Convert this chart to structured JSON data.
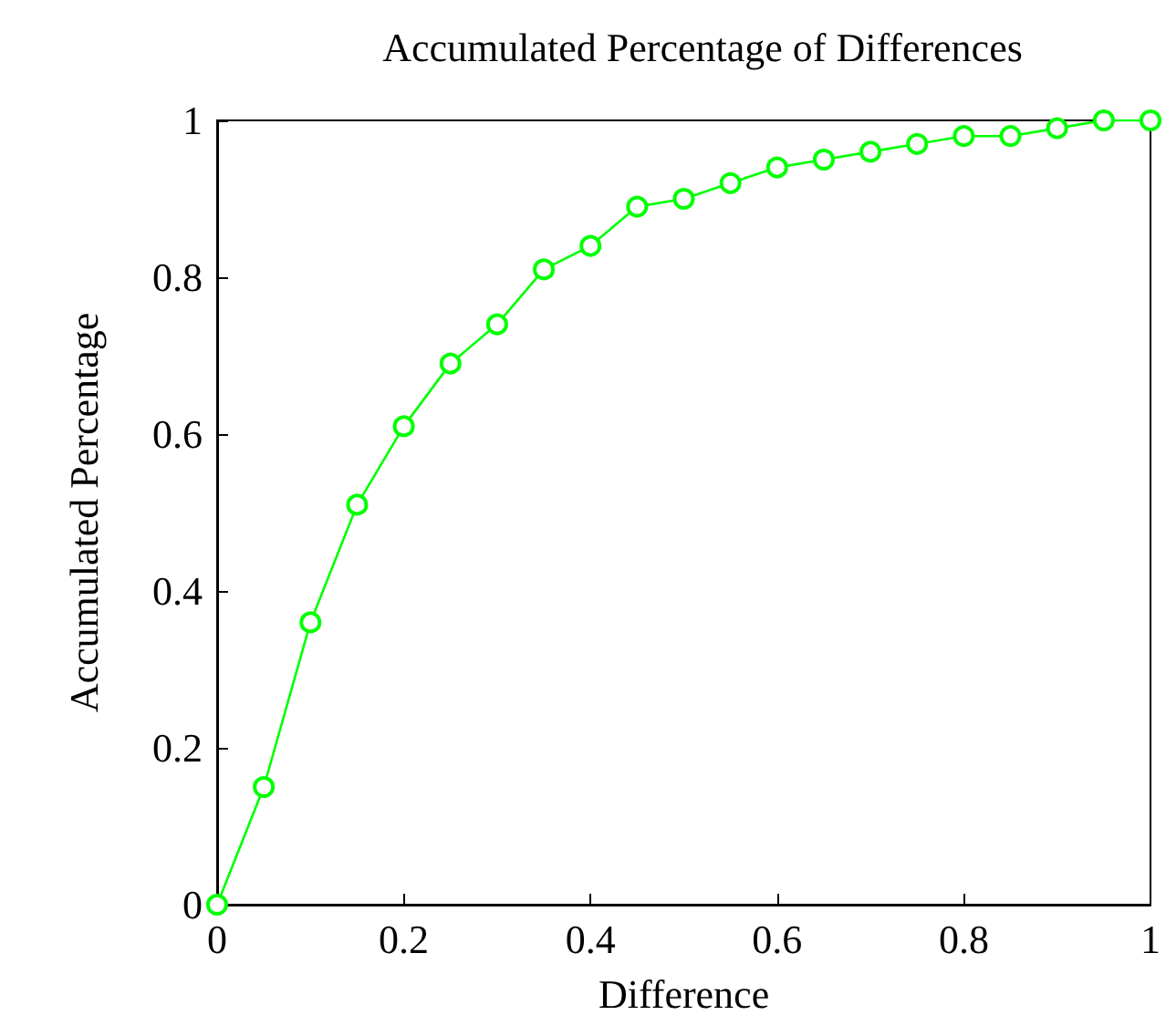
{
  "chart_data": {
    "type": "line",
    "title": "Accumulated Percentage of Differences",
    "xlabel": "Difference",
    "ylabel": "Accumulated Percentage",
    "x": [
      0,
      0.05,
      0.1,
      0.15,
      0.2,
      0.25,
      0.3,
      0.35,
      0.4,
      0.45,
      0.5,
      0.55,
      0.6,
      0.65,
      0.7,
      0.75,
      0.8,
      0.85,
      0.9,
      0.95,
      1
    ],
    "series": [
      {
        "color": "#00ff00",
        "values": [
          0,
          0.15,
          0.36,
          0.51,
          0.61,
          0.69,
          0.74,
          0.81,
          0.84,
          0.89,
          0.9,
          0.92,
          0.94,
          0.95,
          0.96,
          0.97,
          0.98,
          0.98,
          0.99,
          1,
          1
        ]
      }
    ],
    "xlim": [
      0,
      1
    ],
    "ylim": [
      0,
      1
    ],
    "xticks": [
      0,
      0.2,
      0.4,
      0.6,
      0.8,
      1
    ],
    "yticks": [
      0,
      0.2,
      0.4,
      0.6,
      0.8,
      1
    ],
    "grid": false,
    "marker": "circle",
    "line_style": "solid"
  }
}
